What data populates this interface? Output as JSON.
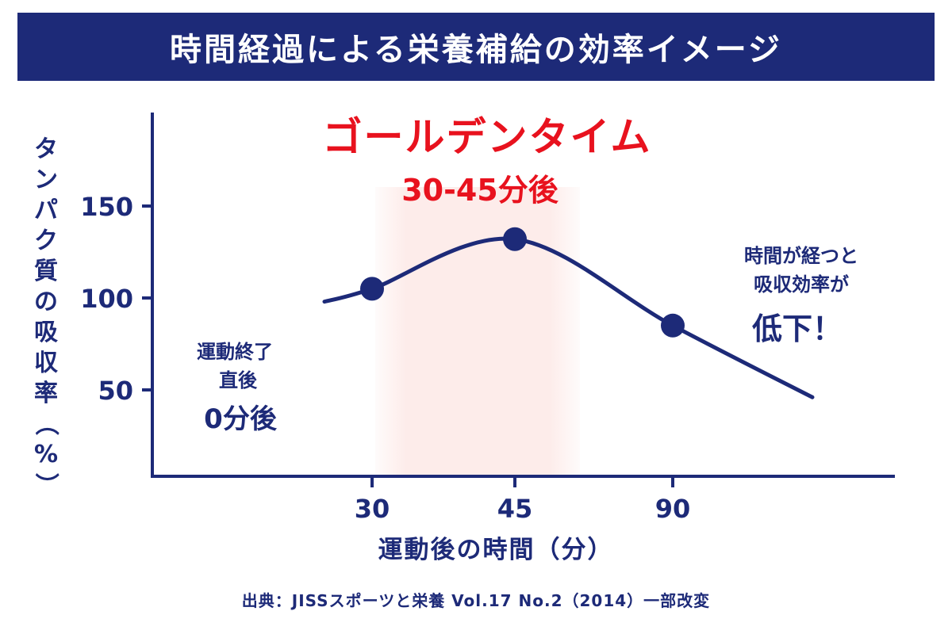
{
  "title": "時間経過による栄養補給の効率イメージ",
  "colors": {
    "navy": "#1d2a78",
    "red": "#e8121e",
    "highlight": "#fdecea"
  },
  "chart_data": {
    "type": "line",
    "xlabel": "運動後の時間（分）",
    "ylabel": "タンパク質の吸収率（%）",
    "x_ticks": [
      "30",
      "45",
      "90"
    ],
    "y_ticks": [
      150,
      100,
      50
    ],
    "points": [
      {
        "x": 30,
        "y": 105
      },
      {
        "x": 45,
        "y": 132
      },
      {
        "x": 90,
        "y": 85
      }
    ],
    "curve_start": {
      "x": 20,
      "y": 98
    },
    "curve_end": {
      "x": 110,
      "y": 46
    },
    "highlight_range": [
      30,
      45
    ],
    "grid": false
  },
  "annotations": {
    "golden_title": "ゴールデンタイム",
    "golden_sub": "30-45分後",
    "left_line1": "運動終了",
    "left_line2": "直後",
    "left_line3": "0分後",
    "right_line1": "時間が経つと",
    "right_line2": "吸収効率が",
    "right_line3": "低下！"
  },
  "source": "出典：JISSスポーツと栄養 Vol.17 No.2（2014）一部改変"
}
